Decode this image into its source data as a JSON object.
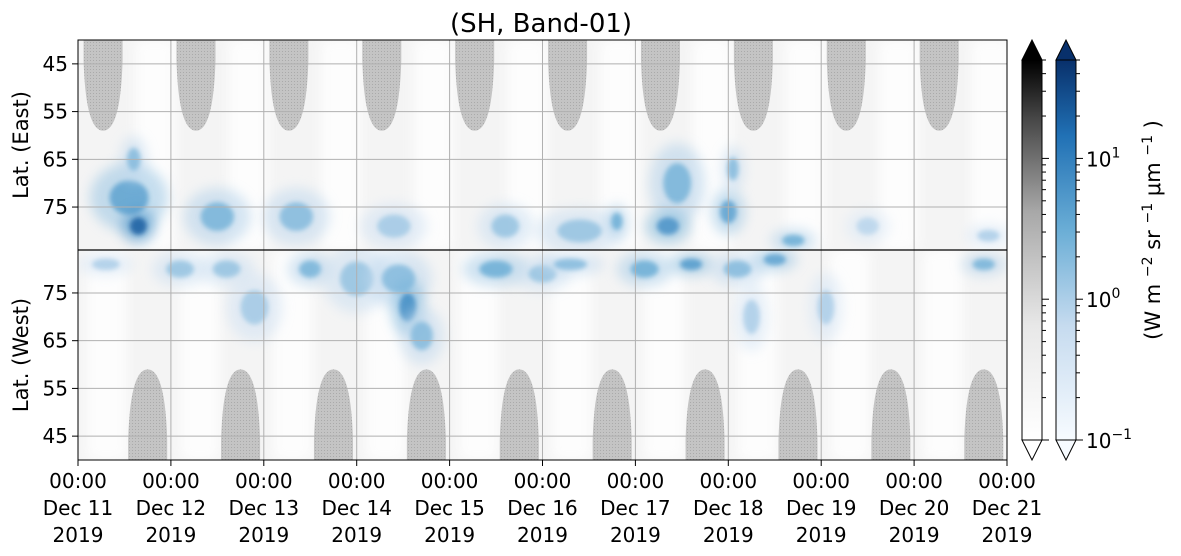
{
  "chart_data": {
    "type": "heatmap",
    "title": "(SH, Band-01)",
    "upper_panel": {
      "ylabel": "Lat. (East)",
      "yticks": [
        "45",
        "55",
        "65",
        "75"
      ],
      "yticks_values": [
        45,
        55,
        65,
        75
      ],
      "yrange": [
        40,
        84
      ]
    },
    "lower_panel": {
      "ylabel": "Lat. (West)",
      "yticks": [
        "75",
        "65",
        "55",
        "45"
      ],
      "yticks_values": [
        75,
        65,
        55,
        45
      ],
      "yrange": [
        84,
        40
      ]
    },
    "xticks": [
      {
        "time": "00:00",
        "date": "Dec 11",
        "year": "2019"
      },
      {
        "time": "00:00",
        "date": "Dec 12",
        "year": "2019"
      },
      {
        "time": "00:00",
        "date": "Dec 13",
        "year": "2019"
      },
      {
        "time": "00:00",
        "date": "Dec 14",
        "year": "2019"
      },
      {
        "time": "00:00",
        "date": "Dec 15",
        "year": "2019"
      },
      {
        "time": "00:00",
        "date": "Dec 16",
        "year": "2019"
      },
      {
        "time": "00:00",
        "date": "Dec 17",
        "year": "2019"
      },
      {
        "time": "00:00",
        "date": "Dec 18",
        "year": "2019"
      },
      {
        "time": "00:00",
        "date": "Dec 19",
        "year": "2019"
      },
      {
        "time": "00:00",
        "date": "Dec 20",
        "year": "2019"
      },
      {
        "time": "00:00",
        "date": "Dec 21",
        "year": "2019"
      }
    ],
    "xrange": [
      "2019-12-11 00:00",
      "2019-12-21 00:00"
    ],
    "grid": true,
    "colorbar": {
      "label_prefix": "(W m",
      "label_sup1": "−2",
      "label_mid1": " sr",
      "label_sup2": "−1",
      "label_mid2": " μm",
      "label_sup3": "−1",
      "label_suffix": ")",
      "scale": "log",
      "range": [
        0.1,
        50
      ],
      "tick_values": [
        0.1,
        1,
        10
      ],
      "ticks": [
        {
          "base": "10",
          "exp": "−1"
        },
        {
          "base": "10",
          "exp": "0"
        },
        {
          "base": "10",
          "exp": "1"
        }
      ],
      "colormaps": [
        "Greys",
        "Blues"
      ],
      "extend": "both"
    },
    "grey_caps": [
      {
        "panel": "upper",
        "day_center": 0.27,
        "half_width_days": 0.21,
        "lat_bottom": 59
      },
      {
        "panel": "upper",
        "day_center": 1.27,
        "half_width_days": 0.21,
        "lat_bottom": 59
      },
      {
        "panel": "upper",
        "day_center": 2.27,
        "half_width_days": 0.21,
        "lat_bottom": 59
      },
      {
        "panel": "upper",
        "day_center": 3.27,
        "half_width_days": 0.21,
        "lat_bottom": 59
      },
      {
        "panel": "upper",
        "day_center": 4.27,
        "half_width_days": 0.21,
        "lat_bottom": 59
      },
      {
        "panel": "upper",
        "day_center": 5.27,
        "half_width_days": 0.21,
        "lat_bottom": 59
      },
      {
        "panel": "upper",
        "day_center": 6.27,
        "half_width_days": 0.21,
        "lat_bottom": 59
      },
      {
        "panel": "upper",
        "day_center": 7.27,
        "half_width_days": 0.21,
        "lat_bottom": 59
      },
      {
        "panel": "upper",
        "day_center": 8.27,
        "half_width_days": 0.21,
        "lat_bottom": 59
      },
      {
        "panel": "upper",
        "day_center": 9.27,
        "half_width_days": 0.21,
        "lat_bottom": 59
      },
      {
        "panel": "lower",
        "day_center": 0.75,
        "half_width_days": 0.21,
        "lat_top": 59
      },
      {
        "panel": "lower",
        "day_center": 1.75,
        "half_width_days": 0.21,
        "lat_top": 59
      },
      {
        "panel": "lower",
        "day_center": 2.75,
        "half_width_days": 0.21,
        "lat_top": 59
      },
      {
        "panel": "lower",
        "day_center": 3.75,
        "half_width_days": 0.21,
        "lat_top": 59
      },
      {
        "panel": "lower",
        "day_center": 4.75,
        "half_width_days": 0.21,
        "lat_top": 59
      },
      {
        "panel": "lower",
        "day_center": 5.75,
        "half_width_days": 0.21,
        "lat_top": 59
      },
      {
        "panel": "lower",
        "day_center": 6.75,
        "half_width_days": 0.21,
        "lat_top": 59
      },
      {
        "panel": "lower",
        "day_center": 7.75,
        "half_width_days": 0.21,
        "lat_top": 59
      },
      {
        "panel": "lower",
        "day_center": 8.75,
        "half_width_days": 0.21,
        "lat_top": 59
      },
      {
        "panel": "lower",
        "day_center": 9.75,
        "half_width_days": 0.21,
        "lat_top": 59
      }
    ],
    "emission_blobs": [
      {
        "panel": "upper",
        "day": 0.55,
        "lat": 73,
        "day_spread": 0.35,
        "lat_spread": 6,
        "value": 4
      },
      {
        "panel": "upper",
        "day": 0.65,
        "lat": 79,
        "day_spread": 0.15,
        "lat_spread": 3,
        "value": 20
      },
      {
        "panel": "upper",
        "day": 0.6,
        "lat": 65,
        "day_spread": 0.12,
        "lat_spread": 4,
        "value": 2
      },
      {
        "panel": "upper",
        "day": 1.5,
        "lat": 77,
        "day_spread": 0.3,
        "lat_spread": 5,
        "value": 2.5
      },
      {
        "panel": "upper",
        "day": 2.35,
        "lat": 77,
        "day_spread": 0.3,
        "lat_spread": 5,
        "value": 2
      },
      {
        "panel": "upper",
        "day": 3.4,
        "lat": 79,
        "day_spread": 0.3,
        "lat_spread": 4,
        "value": 1.2
      },
      {
        "panel": "upper",
        "day": 4.6,
        "lat": 79,
        "day_spread": 0.25,
        "lat_spread": 4,
        "value": 1.5
      },
      {
        "panel": "upper",
        "day": 5.4,
        "lat": 80,
        "day_spread": 0.4,
        "lat_spread": 4,
        "value": 1.5
      },
      {
        "panel": "upper",
        "day": 5.8,
        "lat": 78,
        "day_spread": 0.1,
        "lat_spread": 3,
        "value": 3
      },
      {
        "panel": "upper",
        "day": 6.45,
        "lat": 70,
        "day_spread": 0.25,
        "lat_spread": 7,
        "value": 2.5
      },
      {
        "panel": "upper",
        "day": 6.35,
        "lat": 79,
        "day_spread": 0.2,
        "lat_spread": 3,
        "value": 6
      },
      {
        "panel": "upper",
        "day": 7.0,
        "lat": 76,
        "day_spread": 0.15,
        "lat_spread": 4,
        "value": 4
      },
      {
        "panel": "upper",
        "day": 7.05,
        "lat": 67,
        "day_spread": 0.1,
        "lat_spread": 4,
        "value": 2
      },
      {
        "panel": "upper",
        "day": 7.7,
        "lat": 82,
        "day_spread": 0.2,
        "lat_spread": 2,
        "value": 3
      },
      {
        "panel": "upper",
        "day": 8.5,
        "lat": 79,
        "day_spread": 0.2,
        "lat_spread": 3,
        "value": 0.8
      },
      {
        "panel": "upper",
        "day": 9.8,
        "lat": 81,
        "day_spread": 0.2,
        "lat_spread": 2,
        "value": 1
      },
      {
        "panel": "lower",
        "day": 0.3,
        "lat": 81,
        "day_spread": 0.25,
        "lat_spread": 2,
        "value": 1
      },
      {
        "panel": "lower",
        "day": 1.1,
        "lat": 80,
        "day_spread": 0.25,
        "lat_spread": 3,
        "value": 1.5
      },
      {
        "panel": "lower",
        "day": 1.6,
        "lat": 80,
        "day_spread": 0.25,
        "lat_spread": 3,
        "value": 1.5
      },
      {
        "panel": "lower",
        "day": 1.9,
        "lat": 72,
        "day_spread": 0.25,
        "lat_spread": 6,
        "value": 1.2
      },
      {
        "panel": "lower",
        "day": 2.5,
        "lat": 80,
        "day_spread": 0.2,
        "lat_spread": 3,
        "value": 2.5
      },
      {
        "panel": "lower",
        "day": 3.0,
        "lat": 78,
        "day_spread": 0.3,
        "lat_spread": 6,
        "value": 1.5
      },
      {
        "panel": "lower",
        "day": 3.45,
        "lat": 78,
        "day_spread": 0.3,
        "lat_spread": 5,
        "value": 2
      },
      {
        "panel": "lower",
        "day": 3.55,
        "lat": 72,
        "day_spread": 0.15,
        "lat_spread": 5,
        "value": 7
      },
      {
        "panel": "lower",
        "day": 3.7,
        "lat": 66,
        "day_spread": 0.2,
        "lat_spread": 5,
        "value": 2
      },
      {
        "panel": "lower",
        "day": 4.5,
        "lat": 80,
        "day_spread": 0.3,
        "lat_spread": 3,
        "value": 3
      },
      {
        "panel": "lower",
        "day": 5.0,
        "lat": 79,
        "day_spread": 0.25,
        "lat_spread": 3,
        "value": 1.5
      },
      {
        "panel": "lower",
        "day": 5.3,
        "lat": 81,
        "day_spread": 0.3,
        "lat_spread": 2,
        "value": 2
      },
      {
        "panel": "lower",
        "day": 6.1,
        "lat": 80,
        "day_spread": 0.25,
        "lat_spread": 3,
        "value": 3
      },
      {
        "panel": "lower",
        "day": 6.6,
        "lat": 81,
        "day_spread": 0.2,
        "lat_spread": 2,
        "value": 5
      },
      {
        "panel": "lower",
        "day": 7.1,
        "lat": 80,
        "day_spread": 0.25,
        "lat_spread": 3,
        "value": 2
      },
      {
        "panel": "lower",
        "day": 7.25,
        "lat": 70,
        "day_spread": 0.15,
        "lat_spread": 6,
        "value": 1
      },
      {
        "panel": "lower",
        "day": 7.5,
        "lat": 82,
        "day_spread": 0.2,
        "lat_spread": 2,
        "value": 4
      },
      {
        "panel": "lower",
        "day": 8.05,
        "lat": 72,
        "day_spread": 0.15,
        "lat_spread": 6,
        "value": 1
      },
      {
        "panel": "lower",
        "day": 9.75,
        "lat": 81,
        "day_spread": 0.2,
        "lat_spread": 2,
        "value": 2.5
      }
    ]
  }
}
